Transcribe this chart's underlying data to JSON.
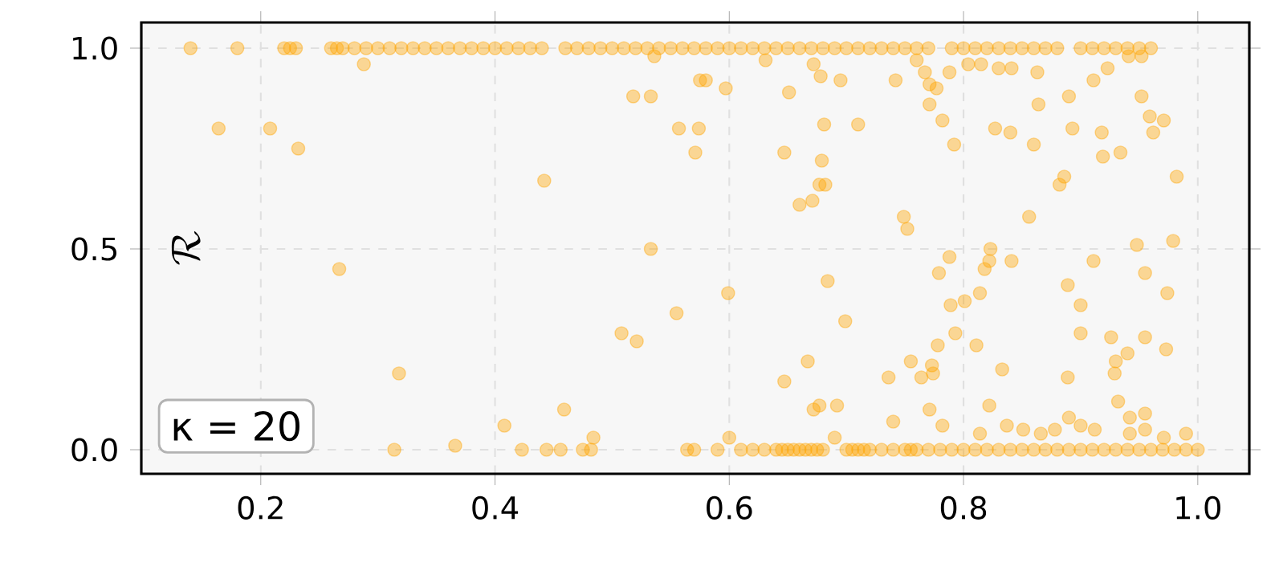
{
  "chart_data": {
    "type": "scatter",
    "ylabel": "\\mathcal{R}",
    "annotations": [
      "κ = 20"
    ],
    "xlim": [
      0.098,
      1.044
    ],
    "ylim": [
      -0.06,
      1.064
    ],
    "xticks": [
      0.2,
      0.4,
      0.6,
      0.8,
      {
        "value": 1.0,
        "label": "1.0"
      }
    ],
    "yticks": [
      {
        "value": 0,
        "label": "0.0"
      },
      0.5,
      {
        "value": 1.0,
        "label": "1.0"
      }
    ],
    "grid": true,
    "marker": "circle",
    "series": [
      {
        "color": "#ffa500",
        "x": [
          0.14,
          0.18,
          0.22,
          0.225,
          0.23,
          0.26,
          0.265,
          0.27,
          0.28,
          0.29,
          0.3,
          0.31,
          0.32,
          0.33,
          0.34,
          0.35,
          0.36,
          0.37,
          0.38,
          0.39,
          0.4,
          0.41,
          0.42,
          0.43,
          0.44,
          0.46,
          0.47,
          0.48,
          0.49,
          0.5,
          0.51,
          0.52,
          0.53,
          0.54,
          0.55,
          0.56,
          0.57,
          0.58,
          0.59,
          0.6,
          0.61,
          0.62,
          0.63,
          0.64,
          0.65,
          0.66,
          0.67,
          0.68,
          0.69,
          0.7,
          0.71,
          0.72,
          0.73,
          0.74,
          0.75,
          0.76,
          0.77,
          0.79,
          0.8,
          0.81,
          0.82,
          0.83,
          0.84,
          0.85,
          0.86,
          0.87,
          0.88,
          0.9,
          0.91,
          0.92,
          0.93,
          0.94,
          0.95,
          0.96,
          0.288,
          0.164,
          0.208,
          0.232,
          0.442,
          0.518,
          0.533,
          0.536,
          0.557,
          0.574,
          0.571,
          0.575,
          0.58,
          0.597,
          0.631,
          0.651,
          0.678,
          0.672,
          0.695,
          0.681,
          0.71,
          0.647,
          0.679,
          0.682,
          0.677,
          0.66,
          0.671,
          0.742,
          0.76,
          0.767,
          0.771,
          0.777,
          0.771,
          0.782,
          0.792,
          0.788,
          0.804,
          0.815,
          0.83,
          0.841,
          0.863,
          0.89,
          0.864,
          0.911,
          0.923,
          0.941,
          0.952,
          0.952,
          0.827,
          0.84,
          0.86,
          0.893,
          0.918,
          0.959,
          0.971,
          0.962,
          0.919,
          0.934,
          0.982,
          0.886,
          0.882,
          0.856,
          0.749,
          0.752,
          0.823,
          0.948,
          0.979,
          0.267,
          0.318,
          0.533,
          0.555,
          0.508,
          0.521,
          0.408,
          0.459,
          0.484,
          0.599,
          0.684,
          0.699,
          0.667,
          0.647,
          0.672,
          0.677,
          0.692,
          0.6,
          0.69,
          0.736,
          0.755,
          0.764,
          0.773,
          0.774,
          0.778,
          0.793,
          0.789,
          0.779,
          0.788,
          0.801,
          0.814,
          0.811,
          0.818,
          0.822,
          0.841,
          0.833,
          0.822,
          0.74,
          0.771,
          0.782,
          0.814,
          0.837,
          0.851,
          0.889,
          0.9,
          0.9,
          0.911,
          0.889,
          0.89,
          0.9,
          0.912,
          0.926,
          0.93,
          0.929,
          0.94,
          0.932,
          0.942,
          0.942,
          0.955,
          0.955,
          0.974,
          0.973,
          0.955,
          0.955,
          0.971,
          0.99,
          0.866,
          0.878,
          0.314,
          0.366,
          0.423,
          0.444,
          0.456,
          0.475,
          0.482,
          0.564,
          0.57,
          0.59,
          0.61,
          0.62,
          0.63,
          0.64,
          0.645,
          0.65,
          0.655,
          0.66,
          0.665,
          0.67,
          0.675,
          0.68,
          0.7,
          0.705,
          0.71,
          0.715,
          0.72,
          0.73,
          0.74,
          0.75,
          0.755,
          0.76,
          0.77,
          0.78,
          0.79,
          0.8,
          0.81,
          0.82,
          0.83,
          0.84,
          0.85,
          0.86,
          0.87,
          0.88,
          0.89,
          0.9,
          0.91,
          0.92,
          0.93,
          0.94,
          0.95,
          0.96,
          0.97,
          0.98,
          0.99,
          1.0
        ],
        "values": [
          1,
          1,
          1,
          1,
          1,
          1,
          1,
          1,
          1,
          1,
          1,
          1,
          1,
          1,
          1,
          1,
          1,
          1,
          1,
          1,
          1,
          1,
          1,
          1,
          1,
          1,
          1,
          1,
          1,
          1,
          1,
          1,
          1,
          1,
          1,
          1,
          1,
          1,
          1,
          1,
          1,
          1,
          1,
          1,
          1,
          1,
          1,
          1,
          1,
          1,
          1,
          1,
          1,
          1,
          1,
          1,
          1,
          1,
          1,
          1,
          1,
          1,
          1,
          1,
          1,
          1,
          1,
          1,
          1,
          1,
          1,
          1,
          1,
          1,
          0.96,
          0.8,
          0.8,
          0.75,
          0.67,
          0.88,
          0.88,
          0.98,
          0.8,
          0.8,
          0.74,
          0.92,
          0.92,
          0.9,
          0.97,
          0.89,
          0.93,
          0.96,
          0.92,
          0.81,
          0.81,
          0.74,
          0.72,
          0.66,
          0.66,
          0.61,
          0.62,
          0.92,
          0.97,
          0.94,
          0.91,
          0.9,
          0.86,
          0.82,
          0.76,
          0.94,
          0.96,
          0.96,
          0.95,
          0.95,
          0.94,
          0.88,
          0.86,
          0.92,
          0.95,
          0.98,
          0.98,
          0.88,
          0.8,
          0.79,
          0.76,
          0.8,
          0.79,
          0.83,
          0.82,
          0.79,
          0.73,
          0.74,
          0.68,
          0.68,
          0.66,
          0.58,
          0.58,
          0.55,
          0.5,
          0.51,
          0.52,
          0.45,
          0.19,
          0.5,
          0.34,
          0.29,
          0.27,
          0.06,
          0.1,
          0.03,
          0.39,
          0.42,
          0.32,
          0.22,
          0.17,
          0.1,
          0.11,
          0.11,
          0.03,
          0.03,
          0.18,
          0.22,
          0.18,
          0.21,
          0.19,
          0.26,
          0.29,
          0.36,
          0.44,
          0.48,
          0.37,
          0.39,
          0.26,
          0.45,
          0.47,
          0.47,
          0.2,
          0.11,
          0.07,
          0.1,
          0.06,
          0.04,
          0.06,
          0.05,
          0.41,
          0.36,
          0.29,
          0.47,
          0.18,
          0.08,
          0.06,
          0.05,
          0.28,
          0.22,
          0.19,
          0.24,
          0.12,
          0.08,
          0.04,
          0.28,
          0.44,
          0.39,
          0.25,
          0.09,
          0.05,
          0.03,
          0.04,
          0.04,
          0.05,
          0.0,
          0.01,
          0,
          0,
          0,
          0,
          0,
          0,
          0,
          0,
          0,
          0,
          0,
          0,
          0,
          0,
          0,
          0,
          0,
          0,
          0,
          0,
          0,
          0,
          0,
          0,
          0,
          0,
          0,
          0,
          0,
          0,
          0,
          0,
          0,
          0,
          0,
          0,
          0,
          0,
          0,
          0,
          0,
          0,
          0,
          0,
          0,
          0,
          0,
          0,
          0,
          0,
          0,
          0,
          0,
          0
        ]
      }
    ]
  }
}
